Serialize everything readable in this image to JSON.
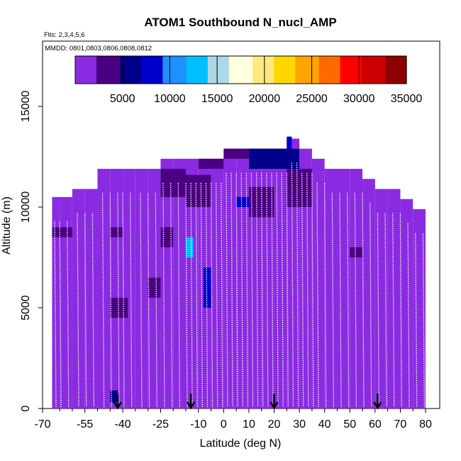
{
  "chart_data": {
    "type": "heatmap",
    "title": "ATOM1 Southbound N_nucl_AMP",
    "annotations": [
      "Flts: 2,3,4,5,6",
      "MMDD: 0801,0803,0806,0808,0812"
    ],
    "xlabel": "Latitude (deg N)",
    "ylabel": "Altitude (m)",
    "xlim": [
      -70,
      80
    ],
    "ylim": [
      0,
      17500
    ],
    "x_ticks": [
      -70,
      -55,
      -40,
      -25,
      -10,
      0,
      10,
      20,
      30,
      40,
      50,
      60,
      70,
      80
    ],
    "x_tick_labels": [
      "-70",
      "-55",
      "-40",
      "-25",
      "-10",
      "0",
      "10",
      "20",
      "30",
      "40",
      "50",
      "60",
      "70",
      "80"
    ],
    "y_ticks": [
      0,
      5000,
      10000,
      15000
    ],
    "y_tick_labels": [
      "0",
      "5000",
      "10000",
      "15000"
    ],
    "colorbar": {
      "range": [
        0,
        35000
      ],
      "ticks": [
        5000,
        10000,
        15000,
        20000,
        25000,
        30000,
        35000
      ],
      "tick_labels": [
        "5000",
        "10000",
        "15000",
        "20000",
        "25000",
        "30000",
        "35000"
      ],
      "colors": [
        "#8a2be2",
        "#4b0082",
        "#00008b",
        "#0000cd",
        "#1e90ff",
        "#00bfff",
        "#add8e6",
        "#ffffe0",
        "#ffe97f",
        "#ffd700",
        "#ffa500",
        "#ff6a00",
        "#ff0000",
        "#cc0000",
        "#8b0000"
      ]
    },
    "background_value": 1000,
    "envelope": {
      "lat": [
        -68,
        -65,
        -60,
        -55,
        -50,
        -45,
        -40,
        -35,
        -30,
        -25,
        -20,
        -15,
        -10,
        -5,
        0,
        5,
        10,
        15,
        20,
        25,
        30,
        35,
        40,
        45,
        50,
        55,
        60,
        65,
        70,
        75,
        80
      ],
      "top_alt": [
        10500,
        10500,
        10900,
        10900,
        11900,
        11900,
        11900,
        11900,
        11900,
        12400,
        12400,
        12400,
        12400,
        12400,
        12900,
        12900,
        12900,
        12900,
        12900,
        13400,
        12900,
        12400,
        11900,
        11900,
        11900,
        11400,
        10900,
        10900,
        10400,
        9900,
        9900
      ]
    },
    "high_cells": [
      {
        "lat": [
          -10,
          0
        ],
        "alt": [
          11900,
          12400
        ],
        "value": 4000
      },
      {
        "lat": [
          0,
          10
        ],
        "alt": [
          12400,
          12900
        ],
        "value": 4000
      },
      {
        "lat": [
          10,
          30
        ],
        "alt": [
          11900,
          12900
        ],
        "value": 6000
      },
      {
        "lat": [
          25,
          27
        ],
        "alt": [
          12900,
          13500
        ],
        "value": 8000
      },
      {
        "lat": [
          -25,
          -15
        ],
        "alt": [
          10500,
          11900
        ],
        "value": 4500
      },
      {
        "lat": [
          -15,
          -5
        ],
        "alt": [
          10000,
          11600
        ],
        "value": 4000
      },
      {
        "lat": [
          5,
          10
        ],
        "alt": [
          10000,
          10500
        ],
        "value": 8000
      },
      {
        "lat": [
          10,
          20
        ],
        "alt": [
          9500,
          11000
        ],
        "value": 4500
      },
      {
        "lat": [
          25,
          35
        ],
        "alt": [
          10000,
          11900
        ],
        "value": 4000
      },
      {
        "lat": [
          -68,
          -60
        ],
        "alt": [
          8500,
          9000
        ],
        "value": 4500
      },
      {
        "lat": [
          -45,
          -40
        ],
        "alt": [
          8500,
          9000
        ],
        "value": 4000
      },
      {
        "lat": [
          -15,
          -12
        ],
        "alt": [
          7500,
          8500
        ],
        "value": 12000
      },
      {
        "lat": [
          -8,
          -5
        ],
        "alt": [
          5000,
          7000
        ],
        "value": 8000
      },
      {
        "lat": [
          -45,
          -42
        ],
        "alt": [
          300,
          900
        ],
        "value": 5000
      },
      {
        "lat": [
          -45,
          -38
        ],
        "alt": [
          4500,
          5500
        ],
        "value": 3500
      },
      {
        "lat": [
          -25,
          -20
        ],
        "alt": [
          8000,
          9000
        ],
        "value": 3000
      },
      {
        "lat": [
          -30,
          -25
        ],
        "alt": [
          5500,
          6500
        ],
        "value": 3000
      },
      {
        "lat": [
          50,
          55
        ],
        "alt": [
          7500,
          8000
        ],
        "value": 3500
      }
    ],
    "profile_lats": [
      -67,
      -65,
      -62,
      -58,
      -55,
      -52,
      -48,
      -45,
      -42,
      -40,
      -37,
      -33,
      -30,
      -27,
      -24,
      -21,
      -18,
      -15,
      -13,
      -11,
      -9,
      -7,
      -5,
      -3,
      -1,
      1,
      3,
      5,
      7,
      9,
      11,
      13,
      15,
      17,
      19,
      21,
      23,
      25,
      27,
      29,
      31,
      33,
      35,
      37,
      40,
      43,
      46,
      49,
      52,
      55,
      58,
      61,
      64,
      67,
      70,
      73,
      76,
      79
    ],
    "markers": [
      {
        "lat": -42,
        "label": ""
      },
      {
        "lat": -13,
        "label": ""
      },
      {
        "lat": 20,
        "label": ""
      },
      {
        "lat": 61,
        "label": ""
      }
    ]
  }
}
